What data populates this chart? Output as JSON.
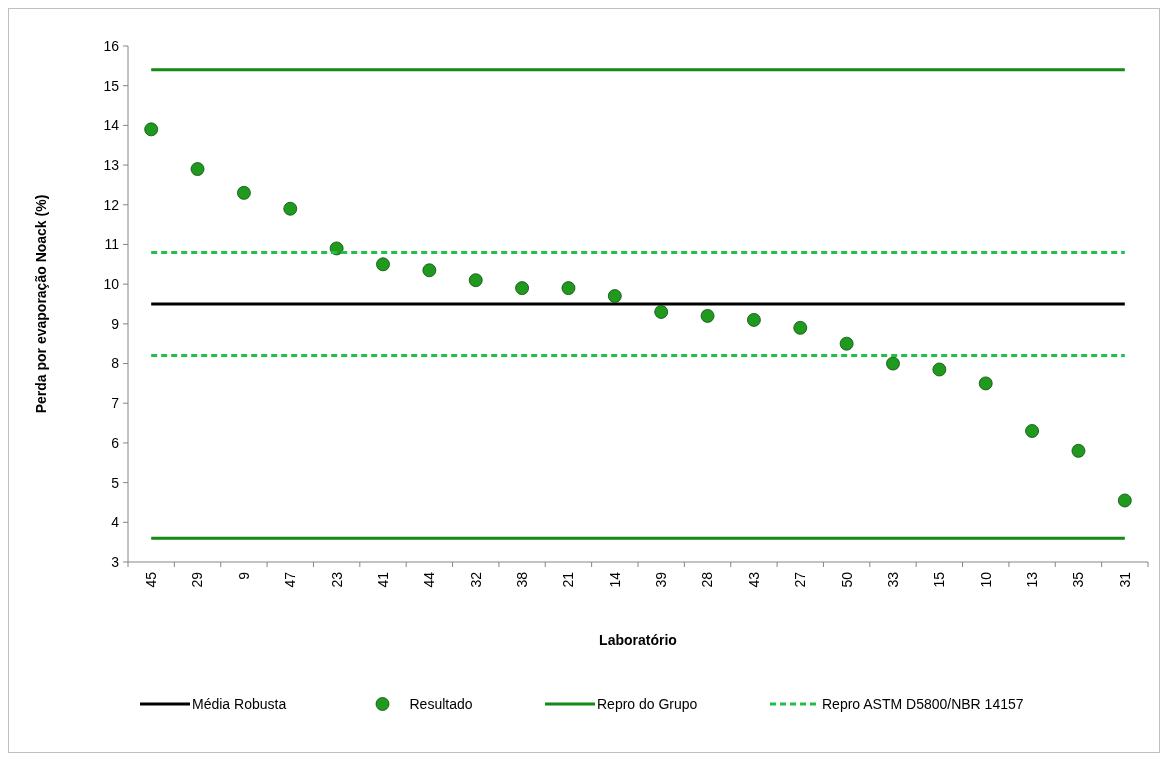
{
  "chart_data": {
    "type": "scatter",
    "xlabel": "Laboratório",
    "ylabel": "Perda por evaporação Noack (%)",
    "categories": [
      "45",
      "29",
      "9",
      "47",
      "23",
      "41",
      "44",
      "32",
      "38",
      "21",
      "14",
      "39",
      "28",
      "43",
      "27",
      "50",
      "33",
      "15",
      "10",
      "13",
      "35",
      "31"
    ],
    "ylim": [
      3,
      16
    ],
    "yticks": [
      3,
      4,
      5,
      6,
      7,
      8,
      9,
      10,
      11,
      12,
      13,
      14,
      15,
      16
    ],
    "grid": false,
    "legend": "bottom",
    "series": [
      {
        "name": "Média Robusta",
        "type": "line",
        "color": "#000000",
        "line_style": "solid",
        "values": [
          9.5,
          9.5,
          9.5,
          9.5,
          9.5,
          9.5,
          9.5,
          9.5,
          9.5,
          9.5,
          9.5,
          9.5,
          9.5,
          9.5,
          9.5,
          9.5,
          9.5,
          9.5,
          9.5,
          9.5,
          9.5,
          9.5
        ]
      },
      {
        "name": "Resultado",
        "marker": "circle",
        "color": "#1f9a1f",
        "values": [
          13.9,
          12.9,
          12.3,
          11.9,
          10.9,
          10.5,
          10.35,
          10.1,
          9.9,
          9.9,
          9.7,
          9.3,
          9.2,
          9.1,
          8.9,
          8.5,
          8.0,
          7.85,
          7.5,
          6.3,
          5.8,
          4.55
        ]
      },
      {
        "name": "Repro do Grupo",
        "type": "line",
        "color": "#138a13",
        "line_style": "solid",
        "values": [
          15.4,
          15.4,
          15.4,
          15.4,
          15.4,
          15.4,
          15.4,
          15.4,
          15.4,
          15.4,
          15.4,
          15.4,
          15.4,
          15.4,
          15.4,
          15.4,
          15.4,
          15.4,
          15.4,
          15.4,
          15.4,
          15.4
        ]
      },
      {
        "type": "line",
        "color": "#138a13",
        "line_style": "solid",
        "values": [
          3.6,
          3.6,
          3.6,
          3.6,
          3.6,
          3.6,
          3.6,
          3.6,
          3.6,
          3.6,
          3.6,
          3.6,
          3.6,
          3.6,
          3.6,
          3.6,
          3.6,
          3.6,
          3.6,
          3.6,
          3.6,
          3.6
        ]
      },
      {
        "name": "Repro ASTM D5800/NBR 14157",
        "type": "line",
        "color": "#1fbf4a",
        "line_style": "dashed",
        "values": [
          10.8,
          10.8,
          10.8,
          10.8,
          10.8,
          10.8,
          10.8,
          10.8,
          10.8,
          10.8,
          10.8,
          10.8,
          10.8,
          10.8,
          10.8,
          10.8,
          10.8,
          10.8,
          10.8,
          10.8,
          10.8,
          10.8
        ]
      },
      {
        "type": "line",
        "color": "#1fbf4a",
        "line_style": "dashed",
        "values": [
          8.2,
          8.2,
          8.2,
          8.2,
          8.2,
          8.2,
          8.2,
          8.2,
          8.2,
          8.2,
          8.2,
          8.2,
          8.2,
          8.2,
          8.2,
          8.2,
          8.2,
          8.2,
          8.2,
          8.2,
          8.2,
          8.2
        ]
      }
    ]
  }
}
